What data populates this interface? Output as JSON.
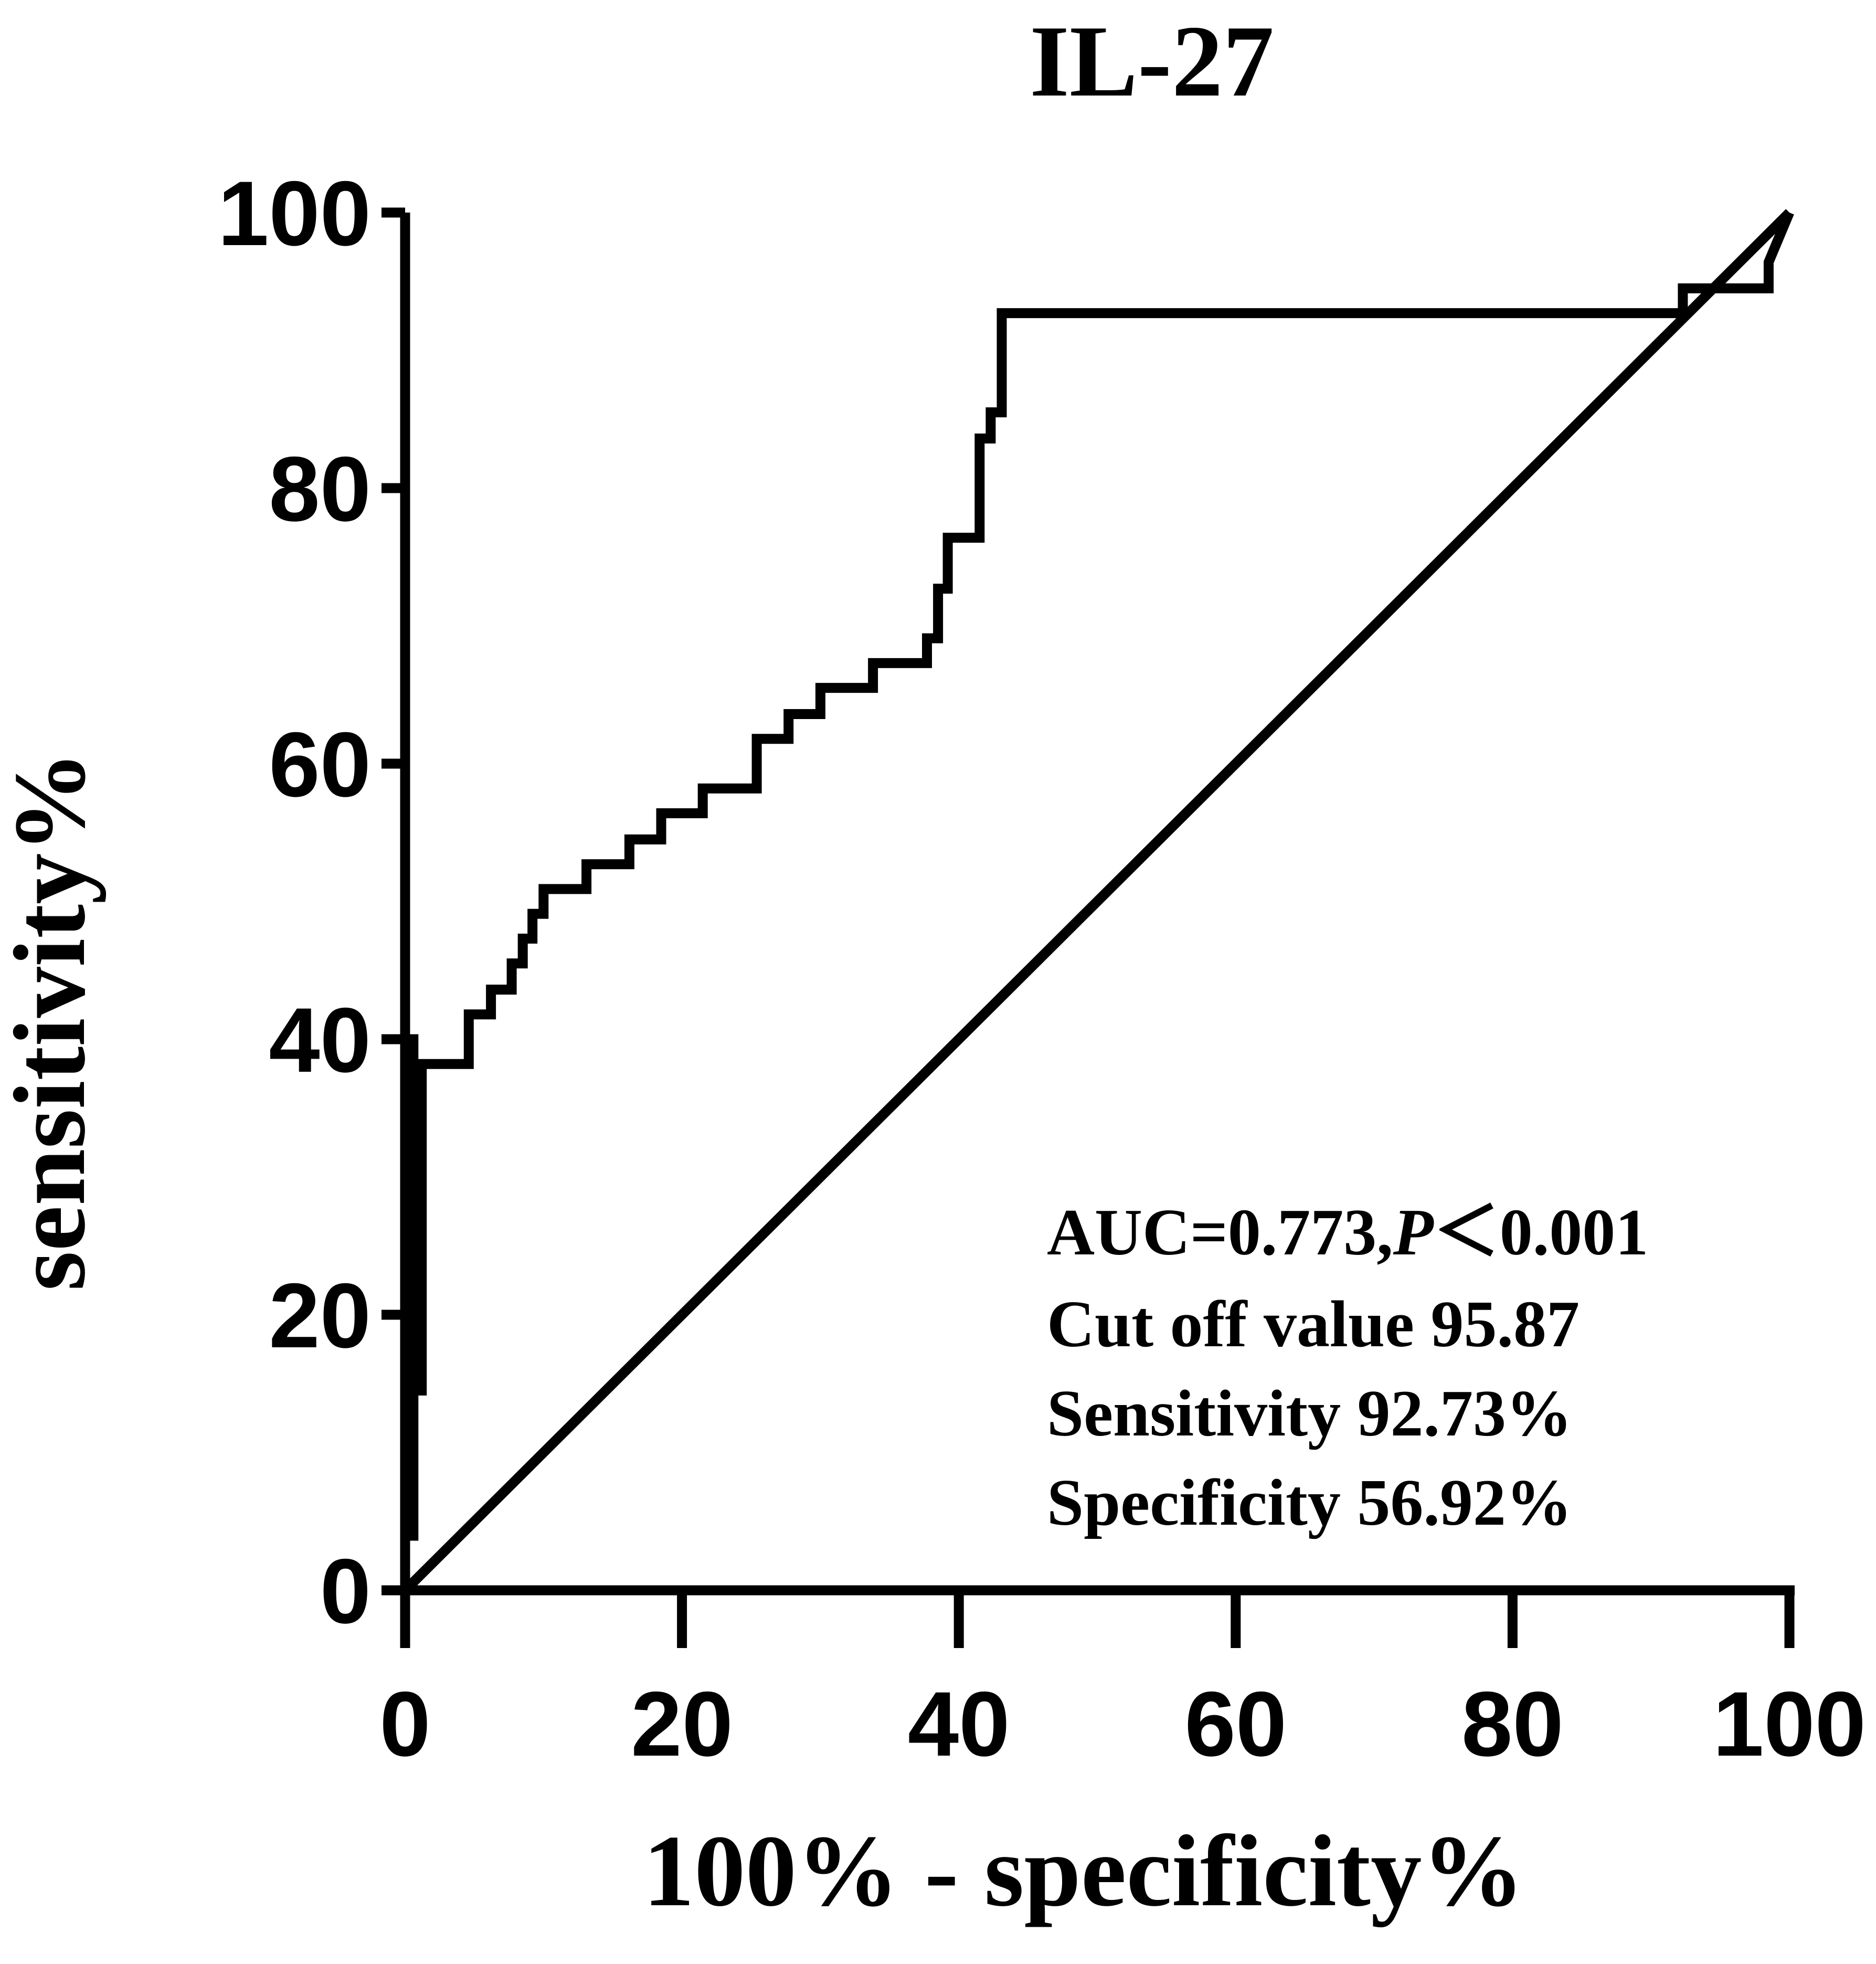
{
  "chart_data": {
    "type": "line",
    "title": "IL-27",
    "xlabel": "100% - specificity%",
    "ylabel": "sensitivity%",
    "xlim": [
      0,
      100
    ],
    "ylim": [
      0,
      100
    ],
    "x_ticks": [
      "0",
      "20",
      "40",
      "60",
      "80",
      "100"
    ],
    "y_ticks": [
      "0",
      "20",
      "40",
      "60",
      "80",
      "100"
    ],
    "grid": false,
    "series": [
      {
        "kind": "roc-curve",
        "x": [
          0,
          0,
          0.6,
          0.6,
          0.6,
          1.2,
          1.2,
          1.9,
          1.9,
          4.6,
          4.6,
          6.2,
          6.2,
          7.7,
          7.7,
          8.5,
          8.5,
          9.2,
          9.2,
          10.0,
          10.0,
          13.1,
          13.1,
          16.2,
          16.2,
          18.5,
          18.5,
          21.5,
          21.5,
          25.4,
          25.4,
          27.7,
          27.7,
          30.0,
          30.0,
          33.8,
          33.8,
          37.7,
          37.7,
          38.5,
          38.5,
          39.2,
          39.2,
          41.5,
          41.5,
          42.3,
          42.3,
          43.1,
          43.1,
          92.3,
          92.3,
          98.5,
          98.5,
          100
        ],
        "y": [
          0,
          40,
          40,
          3.6,
          14.5,
          14.5,
          38.2,
          38.2,
          38.2,
          38.2,
          41.8,
          41.8,
          43.6,
          43.6,
          45.5,
          45.5,
          47.3,
          47.3,
          49.1,
          49.1,
          50.9,
          50.9,
          52.7,
          52.7,
          54.5,
          54.5,
          56.4,
          56.4,
          58.2,
          58.2,
          61.8,
          61.8,
          63.6,
          63.6,
          65.5,
          65.5,
          67.3,
          67.3,
          69.1,
          69.1,
          72.7,
          72.7,
          76.4,
          76.4,
          83.6,
          83.6,
          85.5,
          85.5,
          92.7,
          92.7,
          94.5,
          94.5,
          96.4,
          100
        ]
      },
      {
        "kind": "reference-line",
        "x": [
          0,
          100
        ],
        "y": [
          0,
          100
        ]
      }
    ],
    "annotations": [
      {
        "text": "AUC=0.773,",
        "italic_part": "P",
        "tail": "＜0.001"
      },
      {
        "text": "Cut off value 95.87"
      },
      {
        "text": "Sensitivity 92.73%"
      },
      {
        "text": "Specificity 56.92%"
      }
    ]
  }
}
